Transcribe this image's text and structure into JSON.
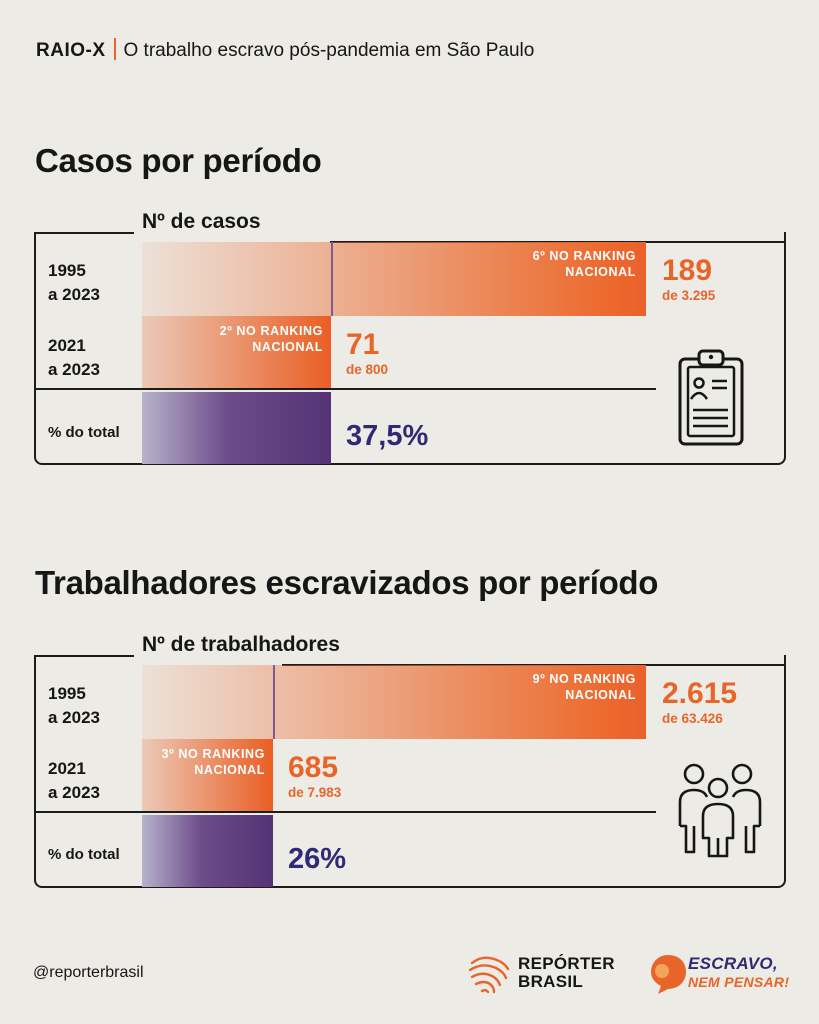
{
  "header": {
    "tag": "RAIO-X",
    "title": "O trabalho escravo pós-pandemia em São Paulo"
  },
  "chart_data": [
    {
      "type": "bar",
      "title": "Casos por período",
      "metric_label": "Nº de casos",
      "rows": [
        {
          "label_line1": "1995",
          "label_line2": "a 2023",
          "value": 189,
          "value_text": "189",
          "of_text": "de 3.295",
          "rank_line1": "6º NO RANKING",
          "rank_line2": "NACIONAL"
        },
        {
          "label_line1": "2021",
          "label_line2": "a 2023",
          "value": 71,
          "value_text": "71",
          "of_text": "de 800",
          "rank_line1": "2º NO RANKING",
          "rank_line2": "NACIONAL"
        }
      ],
      "percent": {
        "label": "% do total",
        "value": 37.5,
        "value_text": "37,5%"
      },
      "icon": "clipboard-icon"
    },
    {
      "type": "bar",
      "title": "Trabalhadores escravizados por período",
      "metric_label": "Nº de trabalhadores",
      "rows": [
        {
          "label_line1": "1995",
          "label_line2": "a 2023",
          "value": 2615,
          "value_text": "2.615",
          "of_text": "de 63.426",
          "rank_line1": "9º NO RANKING",
          "rank_line2": "NACIONAL"
        },
        {
          "label_line1": "2021",
          "label_line2": "a 2023",
          "value": 685,
          "value_text": "685",
          "of_text": "de 7.983",
          "rank_line1": "3º NO RANKING",
          "rank_line2": "NACIONAL"
        }
      ],
      "percent": {
        "label": "% do total",
        "value": 26,
        "value_text": "26%"
      },
      "icon": "people-group-icon"
    }
  ],
  "footer": {
    "handle": "@reporterbrasil",
    "logo1_line1": "REPÓRTER",
    "logo1_line2": "BRASIL",
    "logo2_line1": "ESCRAVO,",
    "logo2_line2": "NEM PENSAR!"
  },
  "colors": {
    "orange": "#e8652a",
    "purple": "#553274",
    "navy": "#2f2a73",
    "background": "#ecebe6"
  }
}
